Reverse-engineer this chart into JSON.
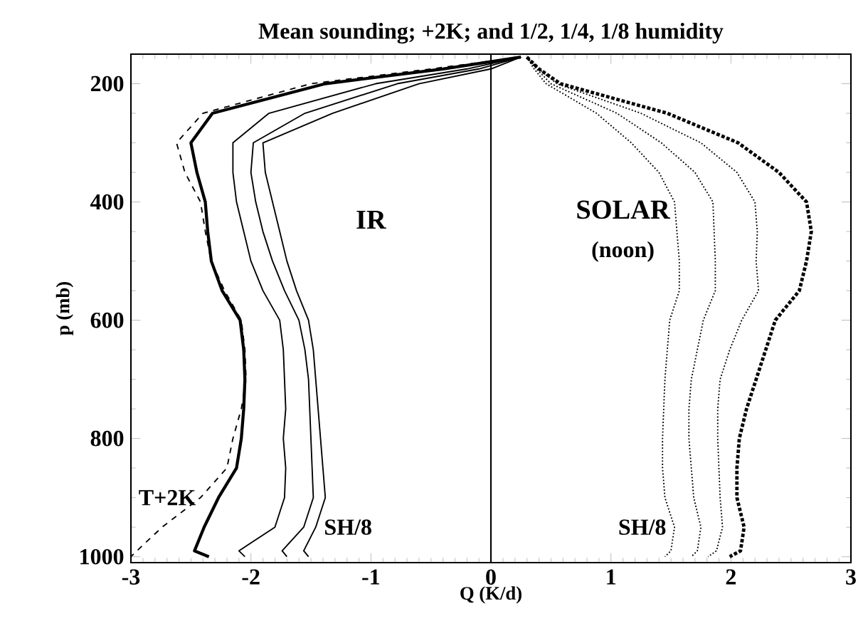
{
  "chart_data": {
    "type": "line",
    "title": "Mean sounding; +2K; and 1/2, 1/4, 1/8 humidity",
    "xlabel": "Q (K/d)",
    "ylabel": "p (mb)",
    "xlim": [
      -3,
      3
    ],
    "ylim": [
      1010,
      150
    ],
    "xticks": [
      -3,
      -2,
      -1,
      0,
      1,
      2,
      3
    ],
    "yticks": [
      200,
      400,
      600,
      800,
      1000
    ],
    "grid": false,
    "annotations": [
      "IR",
      "SOLAR",
      "(noon)"
    ],
    "ref_lines": [
      {
        "axis": "x",
        "value": 0,
        "color": "#000000",
        "line_style": "solid"
      }
    ],
    "series": [
      {
        "color": "#000000",
        "line_style": "solid",
        "x": [
          0.25,
          -0.4,
          -1.38,
          -2.32,
          -2.5,
          -2.45,
          -2.38,
          -2.36,
          -2.33,
          -2.24,
          -2.09,
          -2.06,
          -2.05,
          -2.06,
          -2.08,
          -2.12,
          -2.27,
          -2.39,
          -2.47,
          -2.35
        ],
        "values": [
          155,
          175,
          200,
          250,
          300,
          350,
          400,
          450,
          500,
          550,
          600,
          650,
          700,
          750,
          800,
          850,
          900,
          950,
          990,
          1000
        ]
      },
      {
        "name": "T+2K",
        "color": "#000000",
        "line_style": "dashed",
        "x": [
          0.25,
          -0.5,
          -1.5,
          -2.4,
          -2.62,
          -2.55,
          -2.42,
          -2.38,
          -2.33,
          -2.22,
          -2.08,
          -2.05,
          -2.04,
          -2.08,
          -2.15,
          -2.2,
          -2.42,
          -2.74,
          -2.95,
          -3.0
        ],
        "values": [
          155,
          175,
          200,
          250,
          300,
          350,
          400,
          450,
          500,
          550,
          600,
          650,
          700,
          750,
          800,
          850,
          900,
          950,
          990,
          1000
        ]
      },
      {
        "color": "#000000",
        "line_style": "solid",
        "x": [
          0.25,
          -0.2,
          -0.96,
          -1.85,
          -2.15,
          -2.15,
          -2.12,
          -2.06,
          -2.0,
          -1.9,
          -1.76,
          -1.73,
          -1.72,
          -1.71,
          -1.73,
          -1.71,
          -1.72,
          -1.8,
          -2.1,
          -2.05
        ],
        "values": [
          155,
          175,
          200,
          250,
          300,
          350,
          400,
          450,
          500,
          550,
          600,
          650,
          700,
          750,
          800,
          850,
          900,
          950,
          990,
          1000
        ]
      },
      {
        "color": "#000000",
        "line_style": "solid",
        "x": [
          0.25,
          -0.1,
          -0.78,
          -1.55,
          -1.98,
          -2.0,
          -1.96,
          -1.9,
          -1.82,
          -1.72,
          -1.6,
          -1.55,
          -1.52,
          -1.51,
          -1.5,
          -1.49,
          -1.48,
          -1.56,
          -1.74,
          -1.7
        ],
        "values": [
          155,
          175,
          200,
          250,
          300,
          350,
          400,
          450,
          500,
          550,
          600,
          650,
          700,
          750,
          800,
          850,
          900,
          950,
          990,
          1000
        ]
      },
      {
        "name": "SH/8",
        "color": "#000000",
        "line_style": "solid",
        "x": [
          0.25,
          0.0,
          -0.6,
          -1.32,
          -1.9,
          -1.88,
          -1.82,
          -1.76,
          -1.7,
          -1.62,
          -1.52,
          -1.48,
          -1.46,
          -1.44,
          -1.42,
          -1.4,
          -1.38,
          -1.46,
          -1.56,
          -1.52
        ],
        "values": [
          155,
          175,
          200,
          250,
          300,
          350,
          400,
          450,
          500,
          550,
          600,
          650,
          700,
          750,
          800,
          850,
          900,
          950,
          990,
          1000
        ]
      },
      {
        "color": "#000000",
        "line_style": "dotted",
        "x": [
          0.3,
          0.4,
          0.58,
          1.47,
          2.06,
          2.4,
          2.63,
          2.67,
          2.63,
          2.57,
          2.37,
          2.29,
          2.21,
          2.13,
          2.07,
          2.05,
          2.05,
          2.11,
          2.08,
          1.99
        ],
        "values": [
          155,
          175,
          200,
          250,
          300,
          350,
          400,
          450,
          500,
          550,
          600,
          650,
          700,
          750,
          800,
          850,
          900,
          950,
          990,
          1000
        ]
      },
      {
        "color": "#000000",
        "line_style": "dotted",
        "x": [
          0.3,
          0.4,
          0.55,
          1.25,
          1.75,
          2.05,
          2.2,
          2.22,
          2.21,
          2.23,
          2.09,
          1.99,
          1.91,
          1.89,
          1.89,
          1.9,
          1.91,
          1.93,
          1.88,
          1.81
        ],
        "values": [
          155,
          175,
          200,
          250,
          300,
          350,
          400,
          450,
          500,
          550,
          600,
          650,
          700,
          750,
          800,
          850,
          900,
          950,
          990,
          1000
        ]
      },
      {
        "color": "#000000",
        "line_style": "dotted",
        "x": [
          0.3,
          0.38,
          0.5,
          1.05,
          1.42,
          1.7,
          1.85,
          1.86,
          1.87,
          1.87,
          1.77,
          1.72,
          1.67,
          1.65,
          1.65,
          1.67,
          1.69,
          1.75,
          1.72,
          1.67
        ],
        "values": [
          155,
          175,
          200,
          250,
          300,
          350,
          400,
          450,
          500,
          550,
          600,
          650,
          700,
          750,
          800,
          850,
          900,
          950,
          990,
          1000
        ]
      },
      {
        "name": "SH/8",
        "color": "#000000",
        "line_style": "dotted",
        "x": [
          0.3,
          0.36,
          0.46,
          0.88,
          1.17,
          1.4,
          1.53,
          1.55,
          1.57,
          1.57,
          1.49,
          1.47,
          1.45,
          1.44,
          1.43,
          1.43,
          1.45,
          1.53,
          1.5,
          1.45
        ],
        "values": [
          155,
          175,
          200,
          250,
          300,
          350,
          400,
          450,
          500,
          550,
          600,
          650,
          700,
          750,
          800,
          850,
          900,
          950,
          990,
          1000
        ]
      }
    ]
  }
}
